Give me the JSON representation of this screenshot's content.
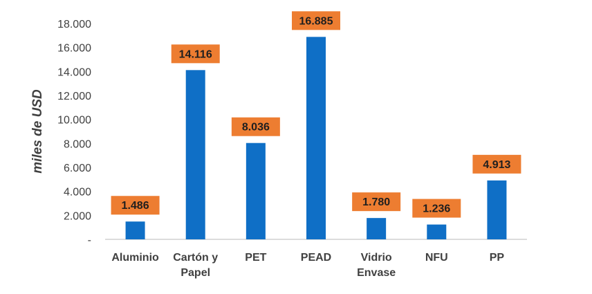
{
  "chart_data": {
    "type": "bar",
    "title": "",
    "xlabel": "",
    "ylabel": "miles de USD",
    "categories": [
      [
        "Aluminio"
      ],
      [
        "Cartón y",
        "Papel"
      ],
      [
        "PET"
      ],
      [
        "PEAD"
      ],
      [
        "Vidrio",
        "Envase"
      ],
      [
        "NFU"
      ],
      [
        "PP"
      ]
    ],
    "values": [
      1486,
      14116,
      8036,
      16885,
      1780,
      1236,
      4913
    ],
    "data_labels": [
      "1.486",
      "14.116",
      "8.036",
      "16.885",
      "1.780",
      "1.236",
      "4.913"
    ],
    "ylim": [
      0,
      18000
    ],
    "y_ticks": [
      0,
      2000,
      4000,
      6000,
      8000,
      10000,
      12000,
      14000,
      16000,
      18000
    ],
    "y_tick_labels": [
      "-",
      "2.000",
      "4.000",
      "6.000",
      "8.000",
      "10.000",
      "12.000",
      "14.000",
      "16.000",
      "18.000"
    ],
    "grid": false,
    "legend": "none",
    "colors": {
      "bar": "#0f6fc6",
      "label_box": "#ed7d31",
      "label_text": "#1f1f1f",
      "axis_text": "#404040",
      "axis_line": "#d0d0d0"
    }
  }
}
